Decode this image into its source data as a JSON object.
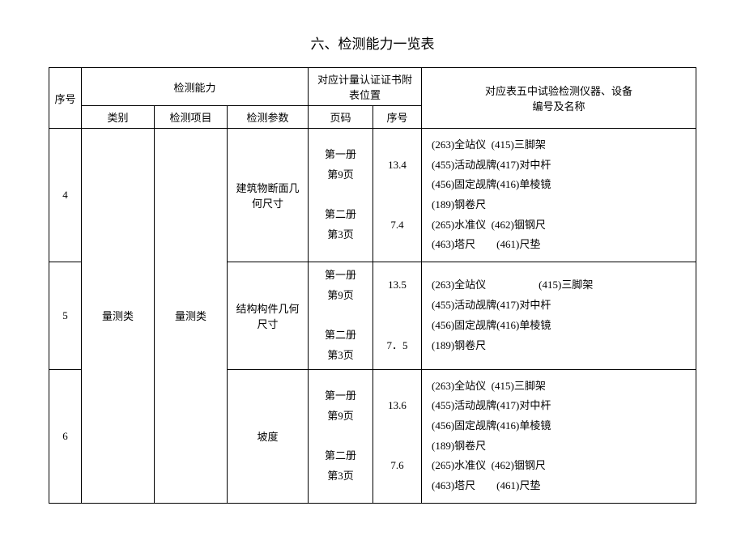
{
  "title": "六、检测能力一览表",
  "header": {
    "seq": "序号",
    "capability": "检测能力",
    "cat": "类别",
    "item": "检测项目",
    "param": "检测参数",
    "loc": "对应计量认证证书附表位置",
    "page": "页码",
    "sub": "序号",
    "instruments": "对应表五中试验检测仪器、设备\n编号及名称"
  },
  "body": {
    "cat": "量测类",
    "item": "量测类",
    "rows": [
      {
        "seq": "4",
        "param": "建筑物断面几何尺寸",
        "page": "第一册\n第9页\n\n第二册\n第3页",
        "sub": "13.4\n\n\n7.4",
        "inst": "(263)全站仪  (415)三脚架\n(455)活动觇牌(417)对中杆\n(456)固定觇牌(416)单棱镜\n(189)钢卷尺\n(265)水准仪  (462)铟钢尺\n(463)塔尺        (461)尺垫"
      },
      {
        "seq": "5",
        "param": "结构构件几何尺寸",
        "page": "第一册\n第9页\n\n第二册\n第3页",
        "sub": "13.5\n\n\n7．5",
        "inst": "(263)全站仪                    (415)三脚架\n(455)活动觇牌(417)对中杆\n(456)固定觇牌(416)单棱镜\n(189)钢卷尺"
      },
      {
        "seq": "6",
        "param": "坡度",
        "page": "第一册\n第9页\n\n第二册\n第3页",
        "sub": "13.6\n\n\n7.6",
        "inst": "(263)全站仪  (415)三脚架\n(455)活动觇牌(417)对中杆\n(456)固定觇牌(416)单棱镜\n(189)钢卷尺\n(265)水准仪  (462)铟钢尺\n(463)塔尺        (461)尺垫"
      }
    ]
  }
}
